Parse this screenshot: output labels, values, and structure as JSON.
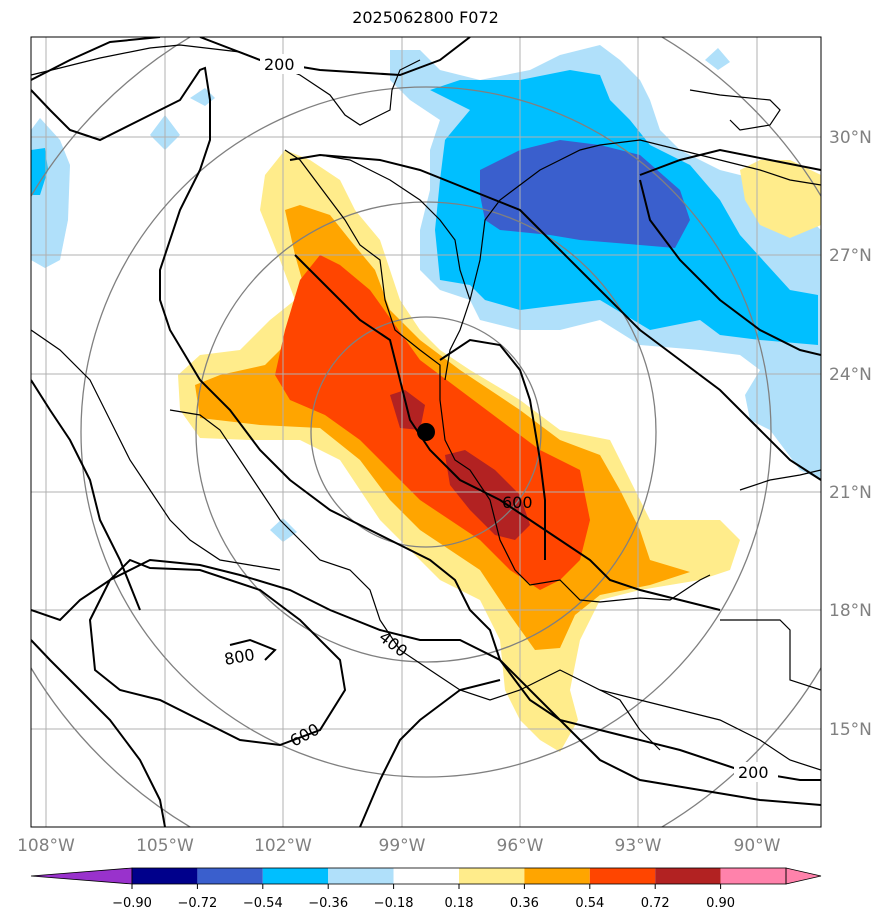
{
  "title": "2025062800 F072",
  "longitude_labels": [
    "108°W",
    "105°W",
    "102°W",
    "99°W",
    "96°W",
    "93°W",
    "90°W"
  ],
  "latitude_labels": [
    "30°N",
    "27°N",
    "24°N",
    "21°N",
    "18°N",
    "15°N"
  ],
  "contour_labels": [
    "200",
    "200",
    "600",
    "400",
    "600",
    "800"
  ],
  "colorbar": {
    "tick_labels": [
      "−0.90",
      "−0.72",
      "−0.54",
      "−0.36",
      "−0.18",
      "0.18",
      "0.36",
      "0.54",
      "0.72",
      "0.90"
    ],
    "colors": [
      "#9932cc",
      "#00008b",
      "#3a5fcd",
      "#00bfff",
      "#b0e0fa",
      "#ffffff",
      "#ffec8b",
      "#ffa500",
      "#ff4500",
      "#b22222",
      "#ff82ab"
    ]
  },
  "storm_center": {
    "lon": -98.3,
    "lat": 22.5
  },
  "fill_colors": {
    "pos1": "#ffec8b",
    "pos2": "#ffa500",
    "pos3": "#ff4500",
    "pos4": "#b22222",
    "neg1": "#b0e0fa",
    "neg2": "#00bfff",
    "neg3": "#3a5fcd"
  }
}
